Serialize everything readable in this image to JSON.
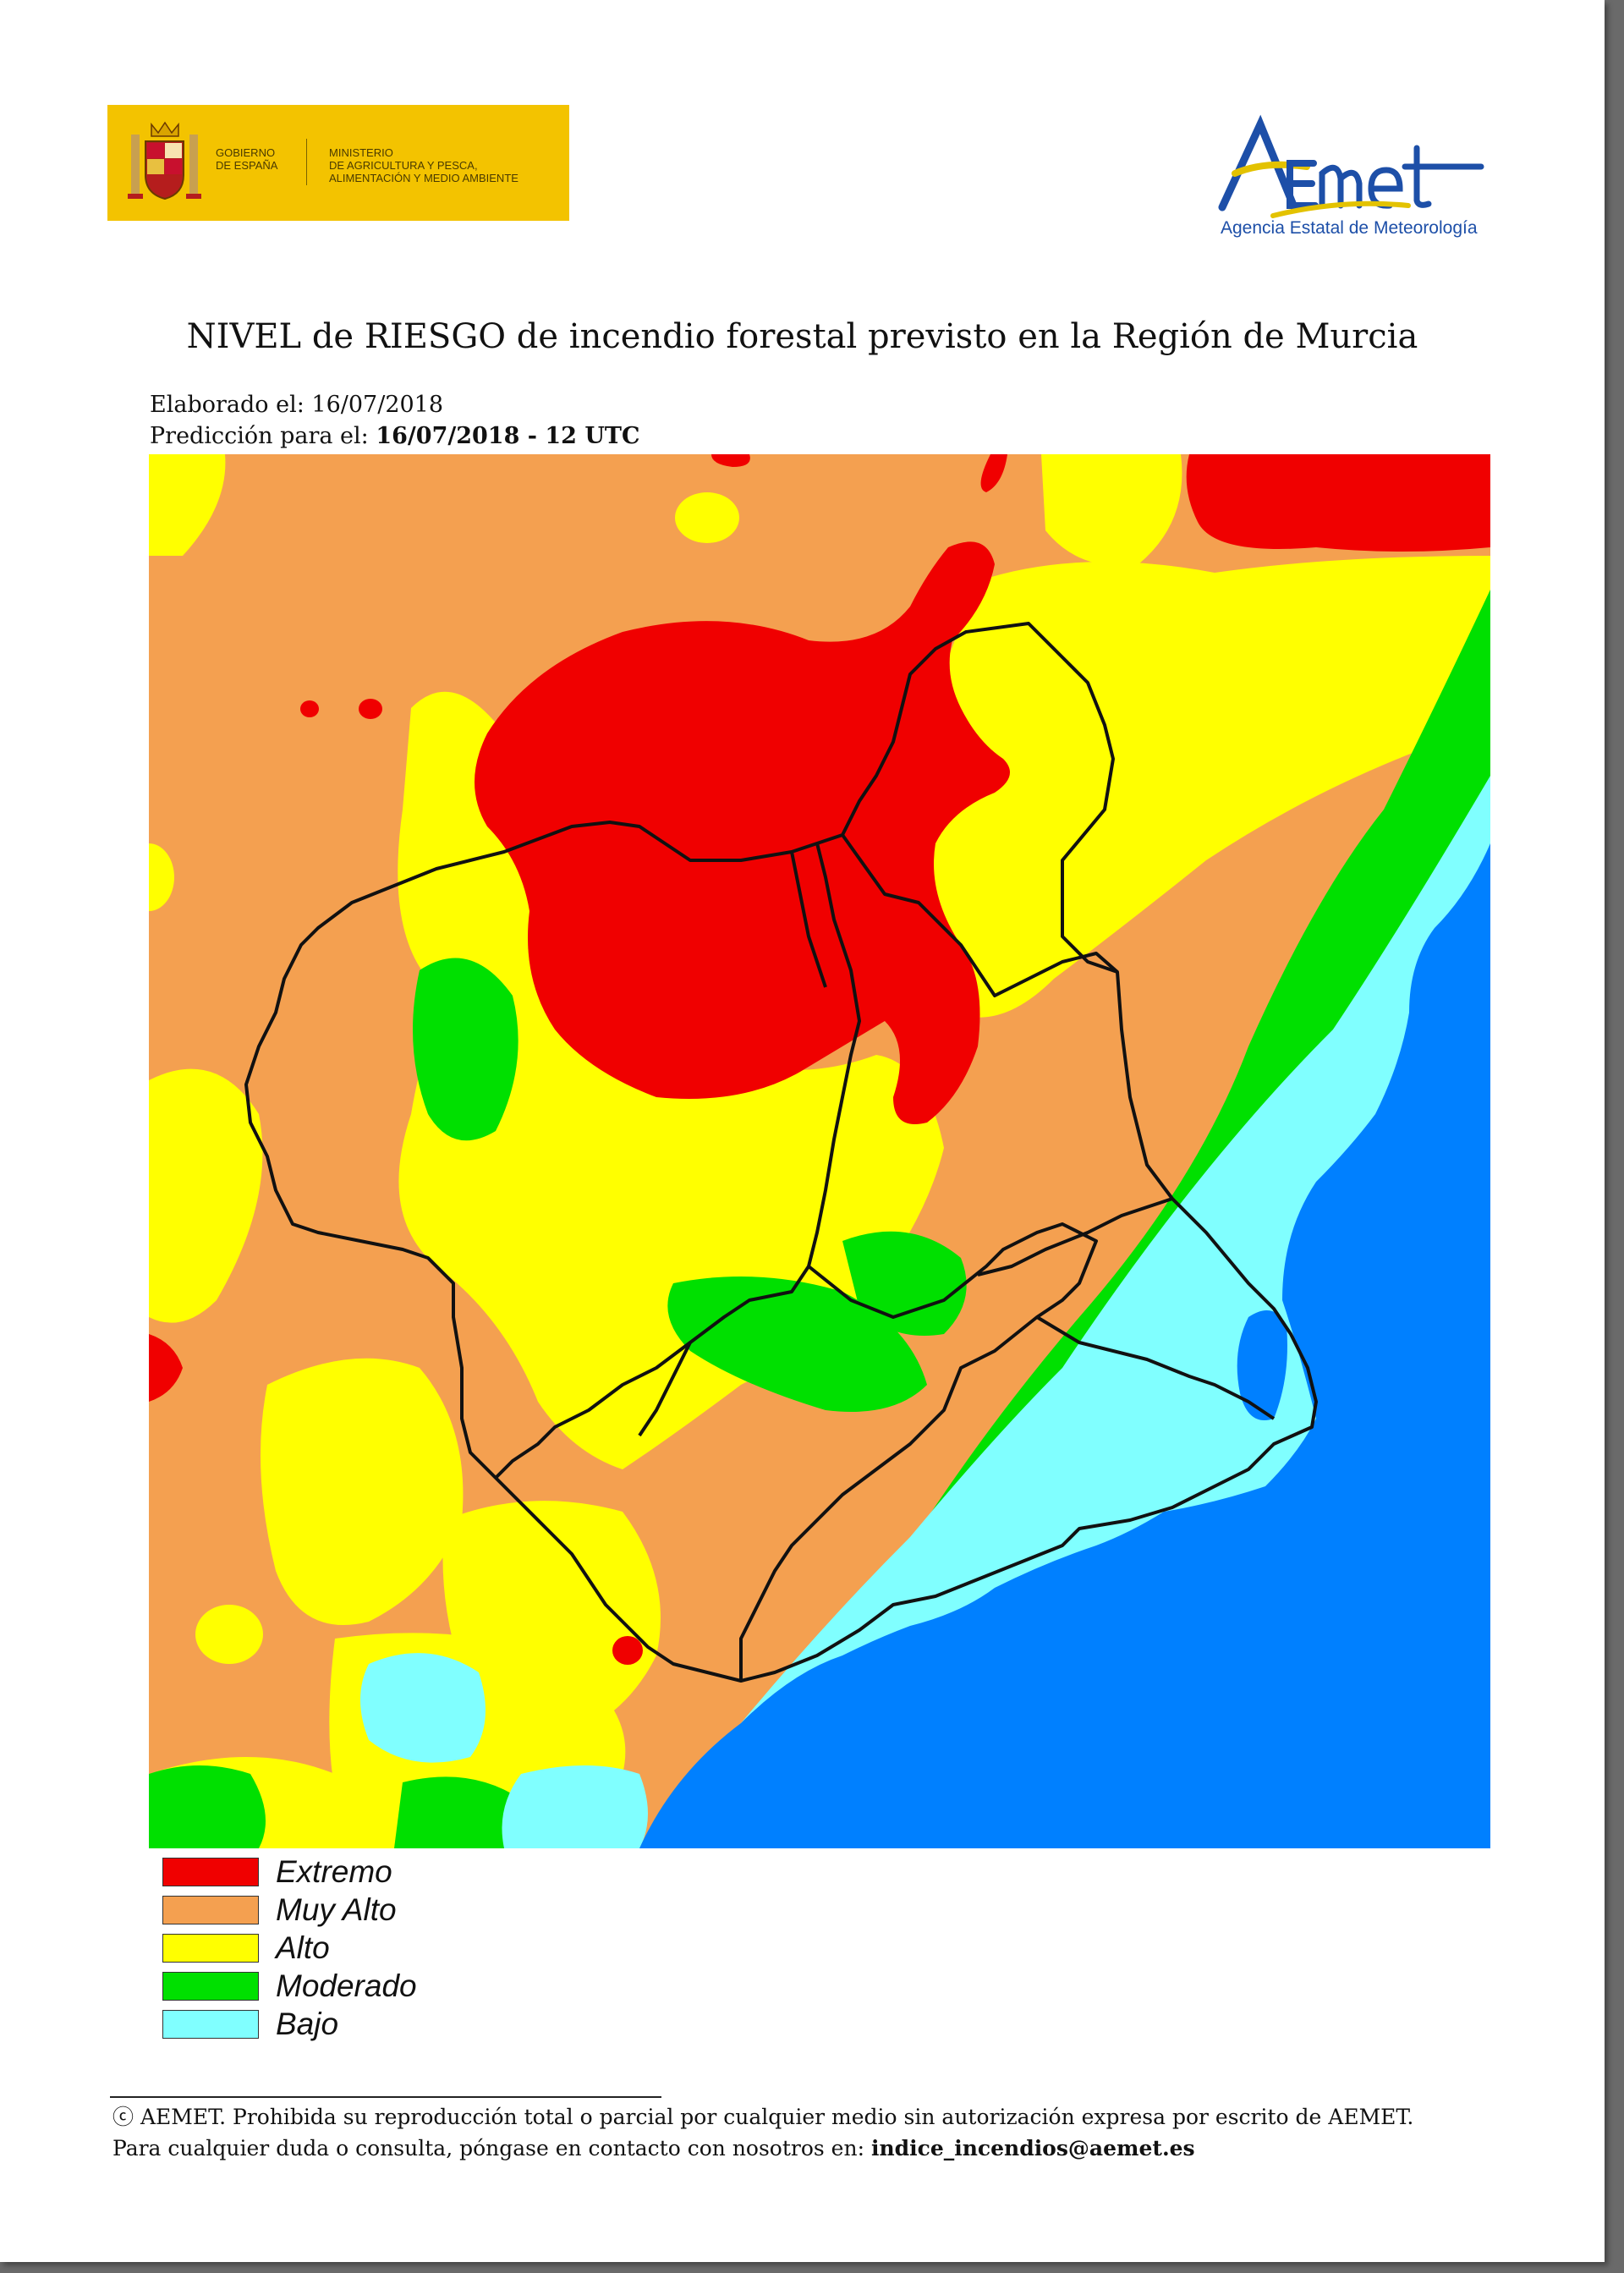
{
  "header": {
    "gov_line1": "GOBIERNO\nDE ESPAÑA",
    "gov_line2": "MINISTERIO\nDE AGRICULTURA Y PESCA,\nALIMENTACIÓN Y MEDIO AMBIENTE",
    "gov_color": "#f3c300",
    "aemet_logo_text": "AEMet",
    "aemet_subtitle": "Agencia Estatal de Meteorología"
  },
  "title": "NIVEL de RIESGO de incendio forestal previsto en la Región de Murcia",
  "meta": {
    "elaborado_label": "Elaborado el:",
    "elaborado_date": "16/07/2018",
    "prediccion_label": "Predicción para el:",
    "prediccion_value": "16/07/2018 - 12 UTC"
  },
  "legend": [
    {
      "label": "Extremo",
      "color": "#f00000"
    },
    {
      "label": "Muy Alto",
      "color": "#f4a050"
    },
    {
      "label": "Alto",
      "color": "#ffff00"
    },
    {
      "label": "Moderado",
      "color": "#00e000"
    },
    {
      "label": "Bajo",
      "color": "#80ffff"
    }
  ],
  "sea_color": "#0080ff",
  "footer": {
    "line1": "ⓒ AEMET. Prohibida su reproducción total o parcial por cualquier medio sin autorización expresa por escrito de AEMET.",
    "line2_prefix": "Para cualquier duda o consulta, póngase en contacto con nosotros en:",
    "email": "indice_incendios@aemet.es"
  }
}
